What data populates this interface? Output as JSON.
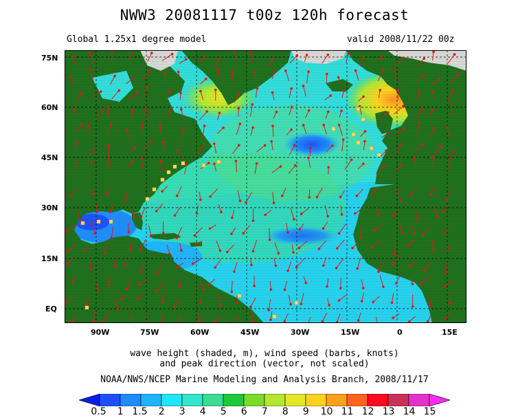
{
  "title": "NWW3 20081117 t00z 120h forecast",
  "subtitle_left": "Global 1.25x1 degree model",
  "subtitle_right": "valid 2008/11/22 00z",
  "lat_labels": [
    "75N",
    "60N",
    "45N",
    "30N",
    "15N",
    "EQ"
  ],
  "lon_labels": [
    "90W",
    "75W",
    "60W",
    "45W",
    "30W",
    "15W",
    "0",
    "15E"
  ],
  "caption_line1": "wave height (shaded, m), wind speed (barbs, knots)",
  "caption_line2": "and peak direction (vector, not scaled)",
  "caption_line3": "NOAA/NWS/NCEP Marine Modeling and Analysis Branch, 2008/11/17",
  "colorbar": {
    "labels": [
      "0.5",
      "1",
      "1.5",
      "2",
      "3",
      "4",
      "5",
      "6",
      "7",
      "8",
      "9",
      "10",
      "11",
      "12",
      "13",
      "14",
      "15"
    ],
    "colors": [
      "#0a1ee6",
      "#1e50ff",
      "#1e8cff",
      "#1eb4ff",
      "#1ee6ff",
      "#32e6c8",
      "#3cdc96",
      "#1ec83c",
      "#78dc28",
      "#b4e632",
      "#e6e628",
      "#ffd21e",
      "#ffa01e",
      "#ff641e",
      "#ff0a1e",
      "#c8325a",
      "#e632c8",
      "#ff28ff"
    ]
  },
  "colors": {
    "land": "#1e6e1e",
    "ice": "#d7d7d7",
    "vector": "#e61414",
    "buoy": "#ffdc64"
  }
}
